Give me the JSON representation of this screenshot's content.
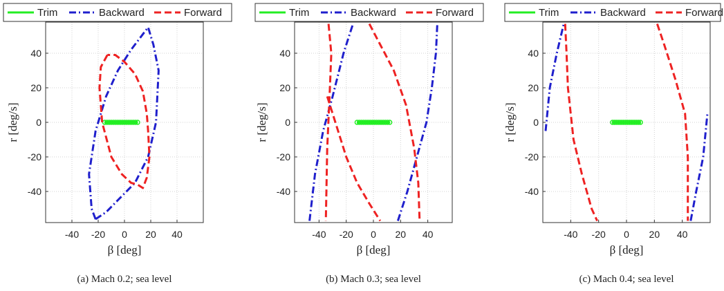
{
  "series_styles": [
    {
      "name": "Trim",
      "color": "#22ee22",
      "dash": "solid"
    },
    {
      "name": "Backward",
      "color": "#1f1fcc",
      "dash": "dashdot"
    },
    {
      "name": "Forward",
      "color": "#ee2222",
      "dash": "dashed"
    }
  ],
  "chart_data": [
    {
      "type": "line",
      "caption": "(a)  Mach 0.2; sea level",
      "xlabel": "β [deg]",
      "ylabel": "r [deg/s]",
      "xlim": [
        -60,
        60
      ],
      "ylim": [
        -58,
        58
      ],
      "xticks": [
        -40,
        -20,
        0,
        20,
        40
      ],
      "yticks": [
        -40,
        -20,
        0,
        20,
        40
      ],
      "grid": true,
      "legend": "top",
      "series": [
        {
          "name": "Trim",
          "segments": [
            [
              [
                -15,
                0
              ],
              [
                10,
                0
              ]
            ]
          ]
        },
        {
          "name": "Backward",
          "segments": [
            [
              [
                -22,
                -56
              ],
              [
                -25,
                -50
              ],
              [
                -27,
                -30
              ],
              [
                -22,
                -5
              ],
              [
                -14,
                15
              ],
              [
                -5,
                30
              ],
              [
                5,
                42
              ],
              [
                18,
                55
              ],
              [
                22,
                45
              ],
              [
                26,
                30
              ],
              [
                24,
                0
              ],
              [
                18,
                -20
              ],
              [
                8,
                -35
              ],
              [
                -5,
                -45
              ],
              [
                -14,
                -52
              ],
              [
                -22,
                -56
              ]
            ]
          ]
        },
        {
          "name": "Forward",
          "segments": [
            [
              [
                -13,
                39
              ],
              [
                -18,
                32
              ],
              [
                -19,
                20
              ],
              [
                -17,
                0
              ],
              [
                -10,
                -20
              ],
              [
                -2,
                -30
              ],
              [
                5,
                -35
              ],
              [
                10,
                -36
              ],
              [
                14,
                -38
              ],
              [
                17,
                -32
              ],
              [
                19,
                -20
              ],
              [
                18,
                -5
              ],
              [
                17,
                5
              ],
              [
                14,
                18
              ],
              [
                8,
                28
              ],
              [
                0,
                35
              ],
              [
                -7,
                39
              ],
              [
                -13,
                39
              ]
            ]
          ]
        }
      ]
    },
    {
      "type": "line",
      "caption": "(b)  Mach 0.3; sea level",
      "xlabel": "β [deg]",
      "ylabel": "r [deg/s]",
      "xlim": [
        -58,
        58
      ],
      "ylim": [
        -58,
        58
      ],
      "xticks": [
        -40,
        -20,
        0,
        20,
        40
      ],
      "yticks": [
        -40,
        -20,
        0,
        20,
        40
      ],
      "grid": true,
      "legend": "top",
      "series": [
        {
          "name": "Trim",
          "segments": [
            [
              [
                -12,
                0
              ],
              [
                12,
                0
              ]
            ]
          ]
        },
        {
          "name": "Backward",
          "segments": [
            [
              [
                -47,
                -57
              ],
              [
                -43,
                -30
              ],
              [
                -37,
                -5
              ],
              [
                -30,
                15
              ],
              [
                -22,
                40
              ],
              [
                -15,
                57
              ]
            ],
            [
              [
                18,
                -57
              ],
              [
                25,
                -40
              ],
              [
                32,
                -20
              ],
              [
                39,
                0
              ],
              [
                43,
                20
              ],
              [
                46,
                40
              ],
              [
                47,
                57
              ]
            ]
          ]
        },
        {
          "name": "Forward",
          "segments": [
            [
              [
                -33,
                57
              ],
              [
                -31,
                40
              ],
              [
                -32,
                20
              ],
              [
                -34,
                -15
              ],
              [
                -35,
                -57
              ]
            ],
            [
              [
                -34,
                15
              ],
              [
                -28,
                0
              ],
              [
                -20,
                -20
              ],
              [
                -12,
                -35
              ],
              [
                -3,
                -47
              ],
              [
                5,
                -57
              ]
            ],
            [
              [
                -3,
                57
              ],
              [
                5,
                45
              ],
              [
                15,
                30
              ],
              [
                24,
                10
              ],
              [
                30,
                -15
              ],
              [
                33,
                -35
              ],
              [
                34,
                -57
              ]
            ]
          ]
        }
      ]
    },
    {
      "type": "line",
      "caption": "(c)  Mach 0.4; sea level",
      "xlabel": "β [deg]",
      "ylabel": "r [deg/s]",
      "xlim": [
        -60,
        60
      ],
      "ylim": [
        -58,
        58
      ],
      "xticks": [
        -40,
        -20,
        0,
        20,
        40
      ],
      "yticks": [
        -40,
        -20,
        0,
        20,
        40
      ],
      "grid": true,
      "legend": "top",
      "series": [
        {
          "name": "Trim",
          "segments": [
            [
              [
                -10,
                0
              ],
              [
                10,
                0
              ]
            ]
          ]
        },
        {
          "name": "Backward",
          "segments": [
            [
              [
                -58,
                -5
              ],
              [
                -55,
                20
              ],
              [
                -50,
                40
              ],
              [
                -45,
                57
              ]
            ],
            [
              [
                46,
                -57
              ],
              [
                50,
                -40
              ],
              [
                55,
                -20
              ],
              [
                58,
                5
              ]
            ]
          ]
        },
        {
          "name": "Forward",
          "segments": [
            [
              [
                -44,
                57
              ],
              [
                -43,
                40
              ],
              [
                -42,
                20
              ],
              [
                -38,
                -10
              ],
              [
                -32,
                -30
              ],
              [
                -25,
                -50
              ],
              [
                -21,
                -57
              ]
            ],
            [
              [
                22,
                57
              ],
              [
                27,
                45
              ],
              [
                35,
                25
              ],
              [
                42,
                5
              ],
              [
                44,
                -20
              ],
              [
                44,
                -57
              ]
            ]
          ]
        }
      ]
    }
  ]
}
